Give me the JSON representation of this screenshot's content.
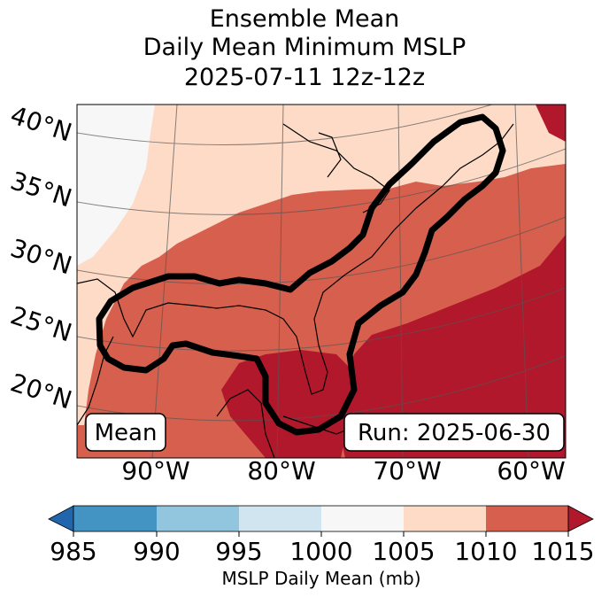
{
  "title": {
    "line1": "Ensemble Mean",
    "line2": "Daily Mean Minimum MSLP",
    "line3": "2025-07-11 12z-12z"
  },
  "map": {
    "lat_labels": [
      "40°N",
      "35°N",
      "30°N",
      "25°N",
      "20°N"
    ],
    "lon_labels": [
      "90°W",
      "80°W",
      "70°W",
      "60°W"
    ],
    "box_left": "Mean",
    "box_right": "Run: 2025-06-30",
    "colors": {
      "c985": "#4393c3",
      "c990": "#92c5de",
      "c995": "#d1e5f0",
      "c1000": "#f7f7f7",
      "c1005": "#fddbc7",
      "c1010": "#d6604d",
      "c1015": "#b2182b",
      "low_end": "#2166ac"
    }
  },
  "colorbar": {
    "ticks": [
      "985",
      "990",
      "995",
      "1000",
      "1005",
      "1010",
      "1015"
    ],
    "label": "MSLP Daily Mean (mb)"
  }
}
